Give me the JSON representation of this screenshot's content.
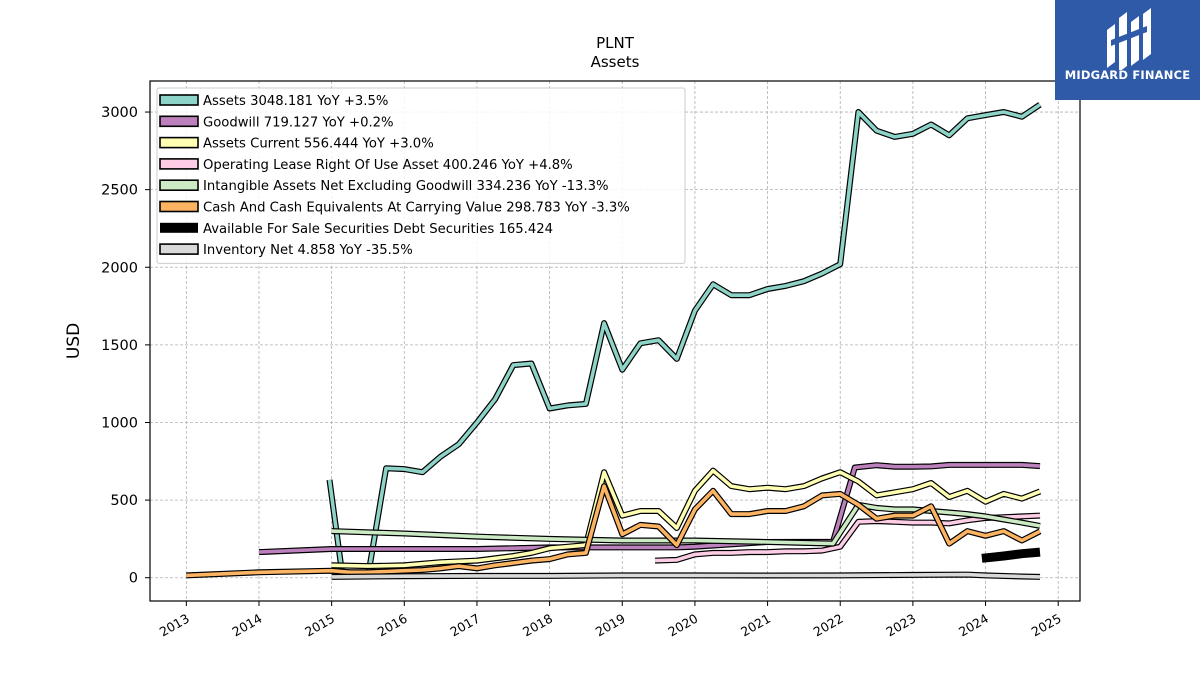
{
  "brand": {
    "name": "MIDGARD FINANCE"
  },
  "chart_data": {
    "type": "line",
    "title": "PLNT",
    "subtitle": "Assets",
    "ylabel": "USD",
    "xlabel": "",
    "xlim": [
      2012.5,
      2025.3
    ],
    "ylim": [
      -150,
      3200
    ],
    "yticks": [
      0,
      500,
      1000,
      1500,
      2000,
      2500,
      3000
    ],
    "xticks": [
      "2013",
      "2014",
      "2015",
      "2016",
      "2017",
      "2018",
      "2019",
      "2020",
      "2021",
      "2022",
      "2023",
      "2024",
      "2025"
    ],
    "grid": true,
    "legend_position": "upper-left",
    "series": [
      {
        "name": "Assets",
        "legend": "Assets  3048.181 YoY +3.5%",
        "color": "#8dd3c7",
        "x": [
          2014.97,
          2015.15,
          2015.5,
          2015.75,
          2016.0,
          2016.25,
          2016.5,
          2016.75,
          2017.0,
          2017.25,
          2017.5,
          2017.75,
          2018.0,
          2018.25,
          2018.5,
          2018.75,
          2019.0,
          2019.25,
          2019.5,
          2019.75,
          2020.0,
          2020.25,
          2020.5,
          2020.75,
          2021.0,
          2021.25,
          2021.5,
          2021.75,
          2022.0,
          2022.25,
          2022.5,
          2022.75,
          2023.0,
          2023.25,
          2023.5,
          2023.75,
          2024.0,
          2024.25,
          2024.5,
          2024.75
        ],
        "values": [
          630,
          10,
          10,
          705,
          700,
          680,
          780,
          860,
          1000,
          1150,
          1370,
          1380,
          1090,
          1110,
          1120,
          1640,
          1340,
          1510,
          1530,
          1410,
          1720,
          1890,
          1820,
          1820,
          1860,
          1880,
          1910,
          1960,
          2020,
          3000,
          2880,
          2840,
          2860,
          2920,
          2850,
          2960,
          2980,
          3000,
          2970,
          3048
        ]
      },
      {
        "name": "Goodwill",
        "legend": "Goodwill  719.127 YoY +0.2%",
        "color": "#bc80bd",
        "x": [
          2014.0,
          2015.0,
          2016.0,
          2017.0,
          2018.0,
          2019.0,
          2019.75,
          2020.0,
          2021.0,
          2021.9,
          2022.2,
          2022.5,
          2022.75,
          2023.0,
          2023.25,
          2023.5,
          2023.75,
          2024.0,
          2024.25,
          2024.5,
          2024.75
        ],
        "values": [
          165,
          185,
          185,
          185,
          195,
          195,
          195,
          200,
          230,
          232,
          710,
          725,
          715,
          715,
          717,
          727,
          727,
          727,
          727,
          727,
          719
        ]
      },
      {
        "name": "Assets Current",
        "legend": "Assets Current  556.444 YoY +3.0%",
        "color": "#ffffb3",
        "x": [
          2015.0,
          2015.5,
          2016.0,
          2016.5,
          2017.0,
          2017.5,
          2017.75,
          2018.0,
          2018.25,
          2018.5,
          2018.75,
          2019.0,
          2019.25,
          2019.5,
          2019.75,
          2020.0,
          2020.25,
          2020.5,
          2020.75,
          2021.0,
          2021.25,
          2021.5,
          2021.75,
          2022.0,
          2022.25,
          2022.5,
          2022.75,
          2023.0,
          2023.25,
          2023.5,
          2023.75,
          2024.0,
          2024.25,
          2024.5,
          2024.75
        ],
        "values": [
          80,
          75,
          80,
          100,
          110,
          140,
          160,
          190,
          200,
          210,
          680,
          400,
          430,
          430,
          320,
          560,
          690,
          590,
          570,
          580,
          570,
          590,
          640,
          680,
          620,
          530,
          550,
          570,
          610,
          520,
          560,
          490,
          540,
          510,
          556
        ]
      },
      {
        "name": "Operating Lease Right Of Use Asset",
        "legend": "Operating Lease Right Of Use Asset  400.246 YoY +4.8%",
        "color": "#fccde5",
        "x": [
          2019.45,
          2019.75,
          2020.0,
          2020.25,
          2020.5,
          2020.75,
          2021.0,
          2021.25,
          2021.5,
          2021.75,
          2022.0,
          2022.25,
          2022.5,
          2022.75,
          2023.0,
          2023.25,
          2023.5,
          2023.75,
          2024.0,
          2024.25,
          2024.5,
          2024.75
        ],
        "values": [
          110,
          115,
          150,
          160,
          160,
          165,
          165,
          170,
          170,
          175,
          200,
          360,
          365,
          360,
          355,
          355,
          350,
          370,
          385,
          390,
          395,
          400
        ]
      },
      {
        "name": "Intangible Assets Net Excluding Goodwill",
        "legend": "Intangible Assets Net Excluding Goodwill  334.236 YoY -13.3%",
        "color": "#ccebc5",
        "x": [
          2015.0,
          2016.0,
          2017.0,
          2018.0,
          2019.0,
          2020.0,
          2021.0,
          2021.9,
          2022.25,
          2022.5,
          2022.75,
          2023.0,
          2023.25,
          2023.5,
          2023.75,
          2024.0,
          2024.25,
          2024.5,
          2024.75
        ],
        "values": [
          300,
          285,
          265,
          250,
          240,
          240,
          230,
          220,
          470,
          450,
          440,
          440,
          430,
          420,
          410,
          395,
          375,
          355,
          334
        ]
      },
      {
        "name": "Cash And Cash Equivalents At Carrying Value",
        "legend": "Cash And Cash Equivalents At Carrying Value  298.783 YoY -3.3%",
        "color": "#fdb462",
        "x": [
          2013.0,
          2014.0,
          2015.0,
          2015.25,
          2015.5,
          2015.75,
          2016.0,
          2016.25,
          2016.5,
          2016.75,
          2017.0,
          2017.25,
          2017.5,
          2017.75,
          2018.0,
          2018.25,
          2018.5,
          2018.75,
          2019.0,
          2019.25,
          2019.5,
          2019.75,
          2020.0,
          2020.25,
          2020.5,
          2020.75,
          2021.0,
          2021.25,
          2021.5,
          2021.75,
          2022.0,
          2022.25,
          2022.5,
          2022.75,
          2023.0,
          2023.25,
          2023.5,
          2023.75,
          2024.0,
          2024.25,
          2024.5,
          2024.75
        ],
        "values": [
          15,
          35,
          45,
          35,
          35,
          40,
          45,
          50,
          60,
          75,
          60,
          80,
          95,
          110,
          120,
          150,
          160,
          590,
          280,
          340,
          330,
          210,
          440,
          560,
          410,
          410,
          430,
          430,
          460,
          530,
          540,
          470,
          380,
          400,
          400,
          460,
          220,
          300,
          270,
          300,
          240,
          299
        ]
      },
      {
        "name": "Available For Sale Securities Debt Securities",
        "legend": "Available For Sale Securities Debt Securities  165.424",
        "color": "#000000",
        "x": [
          2023.95,
          2024.25,
          2024.5,
          2024.75
        ],
        "values": [
          125,
          140,
          155,
          165
        ]
      },
      {
        "name": "Inventory Net",
        "legend": "Inventory Net  4.858 YoY -35.5%",
        "color": "#d9d9d9",
        "x": [
          2015.0,
          2016.0,
          2017.0,
          2018.0,
          2019.0,
          2020.0,
          2021.0,
          2022.0,
          2023.0,
          2023.75,
          2024.0,
          2024.5,
          2024.75
        ],
        "values": [
          5,
          10,
          12,
          12,
          15,
          15,
          14,
          15,
          18,
          20,
          15,
          8,
          5
        ]
      }
    ]
  }
}
